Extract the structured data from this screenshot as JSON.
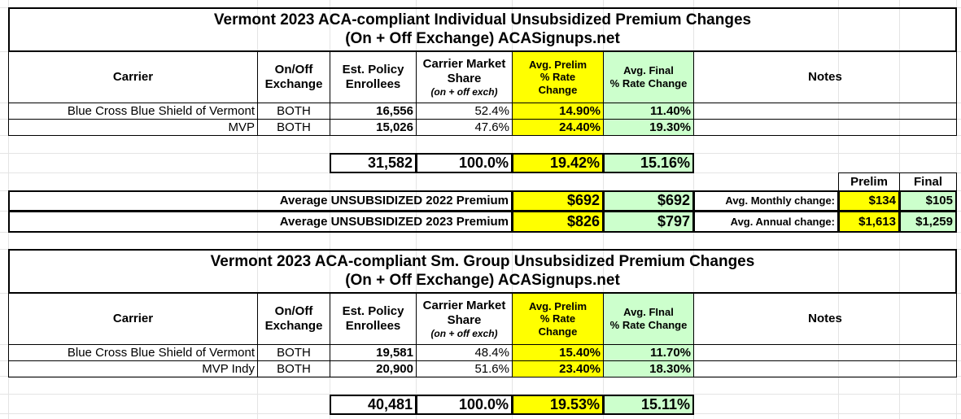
{
  "tables": [
    {
      "title": [
        "Vermont 2023 ACA-compliant Individual Unsubsidized Premium Changes",
        "(On + Off Exchange) ACASignups.net"
      ],
      "headers": [
        [
          "Carrier"
        ],
        [
          "On/Off",
          "Exchange"
        ],
        [
          "Est. Policy",
          "Enrollees"
        ],
        [
          "Carrier Market",
          "Share",
          "(on + off exch)"
        ],
        [
          "Avg. Prelim",
          "% Rate",
          "Change"
        ],
        [
          "Avg. Final",
          "% Rate Change"
        ],
        [
          "Notes"
        ]
      ],
      "rows": [
        [
          "Blue Cross Blue Shield of Vermont",
          "BOTH",
          "16,556",
          "52.4%",
          "14.90%",
          "11.40%"
        ],
        [
          "MVP",
          "BOTH",
          "15,026",
          "47.6%",
          "24.40%",
          "19.30%"
        ]
      ],
      "totals": [
        "31,582",
        "100.0%",
        "19.42%",
        "15.16%"
      ]
    },
    {
      "title": [
        "Vermont 2023 ACA-compliant Sm. Group Unsubsidized Premium Changes",
        "(On + Off Exchange) ACASignups.net"
      ],
      "headers": [
        [
          "Carrier"
        ],
        [
          "On/Off",
          "Exchange"
        ],
        [
          "Est. Policy",
          "Enrollees"
        ],
        [
          "Carrier Market",
          "Share",
          "(on + off exch)"
        ],
        [
          "Avg. Prelim",
          "% Rate",
          "Change"
        ],
        [
          "Avg. FInal",
          "% Rate Change"
        ],
        [
          "Notes"
        ]
      ],
      "rows": [
        [
          "Blue Cross Blue Shield of Vermont",
          "BOTH",
          "19,581",
          "48.4%",
          "15.40%",
          "11.70%"
        ],
        [
          "MVP Indy",
          "BOTH",
          "20,900",
          "51.6%",
          "23.40%",
          "18.30%"
        ]
      ],
      "totals": [
        "40,481",
        "100.0%",
        "19.53%",
        "15.11%"
      ]
    }
  ],
  "premiums": {
    "column_labels": [
      "Prelim",
      "Final"
    ],
    "rows": [
      {
        "label": "Average UNSUBSIDIZED 2022 Premium",
        "prelim": "$692",
        "final": "$692",
        "change_label": "Avg. Monthly change:",
        "change_prelim": "$134",
        "change_final": "$105"
      },
      {
        "label": "Average UNSUBSIDIZED 2023 Premium",
        "prelim": "$826",
        "final": "$797",
        "change_label": "Avg. Annual change:",
        "change_prelim": "$1,613",
        "change_final": "$1,259"
      }
    ]
  }
}
